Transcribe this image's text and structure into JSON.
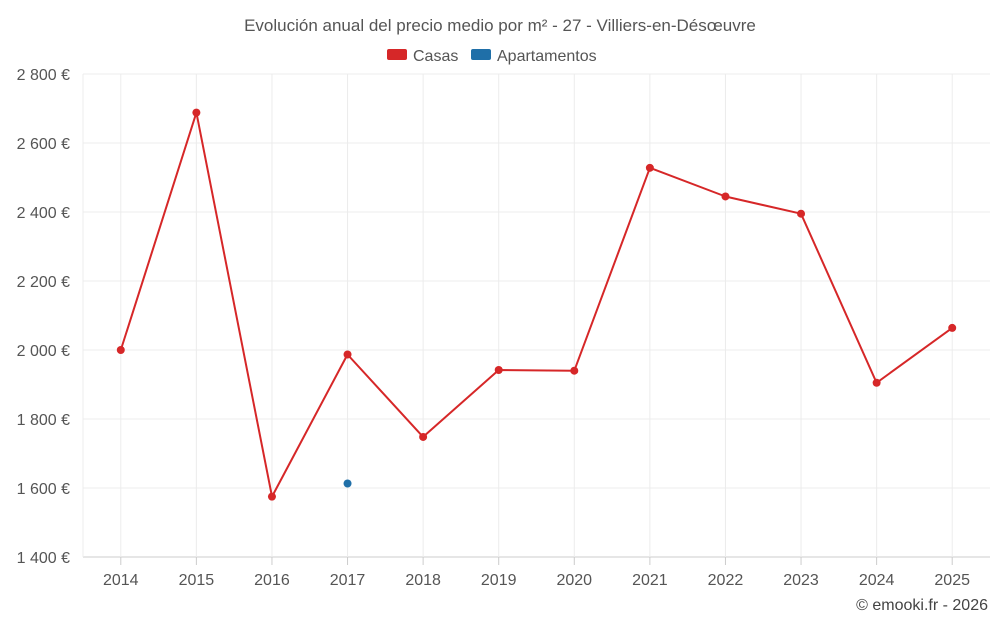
{
  "chart_data": {
    "type": "line",
    "title": "Evolución anual del precio medio por m² - 27 - Villiers-en-Désœuvre",
    "xlabel": "",
    "ylabel": "",
    "categories": [
      "2014",
      "2015",
      "2016",
      "2017",
      "2018",
      "2019",
      "2020",
      "2021",
      "2022",
      "2023",
      "2024",
      "2025"
    ],
    "ylim": [
      1400,
      2800
    ],
    "y_ticks": [
      1400,
      1600,
      1800,
      2000,
      2200,
      2400,
      2600,
      2800
    ],
    "y_tick_labels": [
      "1 400 €",
      "1 600 €",
      "1 800 €",
      "2 000 €",
      "2 200 €",
      "2 400 €",
      "2 600 €",
      "2 800 €"
    ],
    "grid": true,
    "legend_position": "top-center",
    "series": [
      {
        "name": "Casas",
        "color": "#d62728",
        "values": [
          2000,
          2688,
          1575,
          1987,
          1748,
          1942,
          1940,
          2528,
          2445,
          2395,
          1905,
          2064
        ]
      },
      {
        "name": "Apartamentos",
        "color": "#1f6fa8",
        "values": [
          null,
          null,
          null,
          1613,
          null,
          null,
          null,
          null,
          null,
          null,
          null,
          null
        ]
      }
    ]
  },
  "credit": "© emooki.fr - 2026"
}
